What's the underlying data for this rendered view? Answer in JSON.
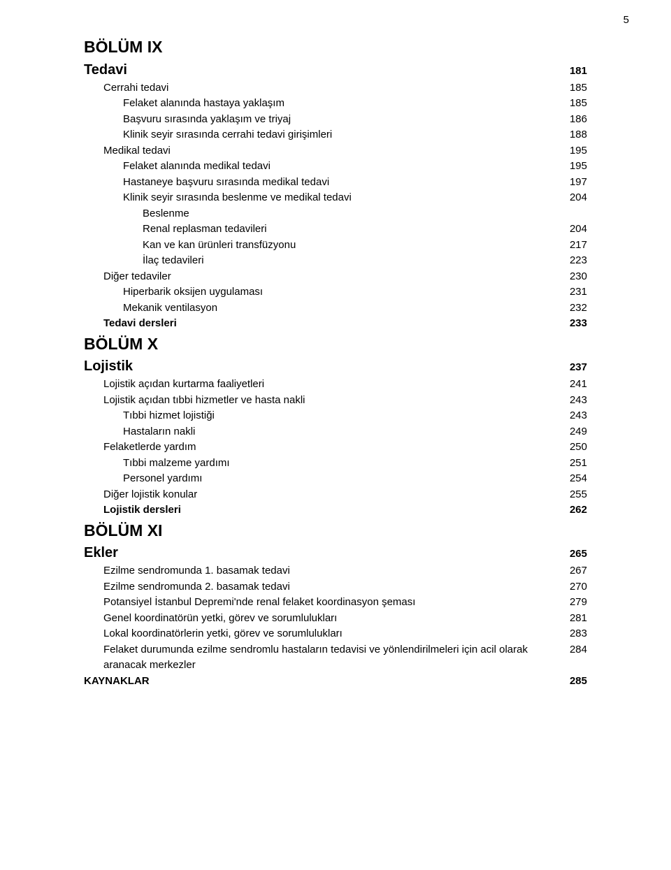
{
  "page_number": "5",
  "colors": {
    "text": "#000000",
    "background": "#ffffff"
  },
  "typography": {
    "font_family": "Arial, Helvetica, sans-serif",
    "body_fontsize": 15,
    "h1_fontsize": 23,
    "h2_fontsize": 20,
    "line_height": 1.5
  },
  "toc": [
    {
      "label": "BÖLÜM IX",
      "page": "",
      "level": 0,
      "label_class": "h1",
      "num_class": ""
    },
    {
      "label": "Tedavi",
      "page": "181",
      "level": 0,
      "label_class": "h2",
      "num_class": "bold"
    },
    {
      "label": "Cerrahi tedavi",
      "page": "185",
      "level": 1,
      "label_class": "body",
      "num_class": ""
    },
    {
      "label": "Felaket alanında hastaya yaklaşım",
      "page": "185",
      "level": 2,
      "label_class": "body",
      "num_class": ""
    },
    {
      "label": "Başvuru sırasında yaklaşım ve triyaj",
      "page": "186",
      "level": 2,
      "label_class": "body",
      "num_class": ""
    },
    {
      "label": "Klinik seyir sırasında cerrahi tedavi girişimleri",
      "page": "188",
      "level": 2,
      "label_class": "body",
      "num_class": ""
    },
    {
      "label": "Medikal tedavi",
      "page": "195",
      "level": 1,
      "label_class": "body",
      "num_class": ""
    },
    {
      "label": "Felaket alanında medikal tedavi",
      "page": "195",
      "level": 2,
      "label_class": "body",
      "num_class": ""
    },
    {
      "label": "Hastaneye başvuru sırasında medikal tedavi",
      "page": "197",
      "level": 2,
      "label_class": "body",
      "num_class": ""
    },
    {
      "label": "Klinik seyir sırasında beslenme ve medikal tedavi",
      "page": "204",
      "level": 2,
      "label_class": "body",
      "num_class": ""
    },
    {
      "label": "Beslenme",
      "page": "",
      "level": 3,
      "label_class": "body",
      "num_class": ""
    },
    {
      "label": "Renal replasman tedavileri",
      "page": "204",
      "level": 3,
      "label_class": "body",
      "num_class": ""
    },
    {
      "label": "Kan ve kan ürünleri transfüzyonu",
      "page": "217",
      "level": 3,
      "label_class": "body",
      "num_class": ""
    },
    {
      "label": "İlaç tedavileri",
      "page": "223",
      "level": 3,
      "label_class": "body",
      "num_class": ""
    },
    {
      "label": "Diğer tedaviler",
      "page": "230",
      "level": 1,
      "label_class": "body",
      "num_class": ""
    },
    {
      "label": "Hiperbarik oksijen uygulaması",
      "page": "231",
      "level": 2,
      "label_class": "body",
      "num_class": ""
    },
    {
      "label": "Mekanik ventilasyon",
      "page": "232",
      "level": 2,
      "label_class": "body",
      "num_class": ""
    },
    {
      "label": "Tedavi dersleri",
      "page": "233",
      "level": 1,
      "label_class": "body bold",
      "num_class": "bold"
    },
    {
      "label": "BÖLÜM X",
      "page": "",
      "level": 0,
      "label_class": "h1",
      "num_class": ""
    },
    {
      "label": "Lojistik",
      "page": "237",
      "level": 0,
      "label_class": "h2",
      "num_class": "bold"
    },
    {
      "label": "Lojistik açıdan kurtarma faaliyetleri",
      "page": "241",
      "level": 1,
      "label_class": "body",
      "num_class": ""
    },
    {
      "label": "Lojistik açıdan tıbbi hizmetler ve hasta nakli",
      "page": "243",
      "level": 1,
      "label_class": "body",
      "num_class": ""
    },
    {
      "label": "Tıbbi hizmet lojistiği",
      "page": "243",
      "level": 2,
      "label_class": "body",
      "num_class": ""
    },
    {
      "label": "Hastaların nakli",
      "page": "249",
      "level": 2,
      "label_class": "body",
      "num_class": ""
    },
    {
      "label": "Felaketlerde yardım",
      "page": "250",
      "level": 1,
      "label_class": "body",
      "num_class": ""
    },
    {
      "label": "Tıbbi malzeme yardımı",
      "page": "251",
      "level": 2,
      "label_class": "body",
      "num_class": ""
    },
    {
      "label": "Personel yardımı",
      "page": "254",
      "level": 2,
      "label_class": "body",
      "num_class": ""
    },
    {
      "label": "Diğer lojistik konular",
      "page": "255",
      "level": 1,
      "label_class": "body",
      "num_class": ""
    },
    {
      "label": "Lojistik dersleri",
      "page": "262",
      "level": 1,
      "label_class": "body bold",
      "num_class": "bold"
    },
    {
      "label": "BÖLÜM XI",
      "page": "",
      "level": 0,
      "label_class": "h1",
      "num_class": ""
    },
    {
      "label": "Ekler",
      "page": "265",
      "level": 0,
      "label_class": "h2",
      "num_class": "bold"
    },
    {
      "label": "Ezilme sendromunda 1. basamak tedavi",
      "page": "267",
      "level": 1,
      "label_class": "body",
      "num_class": ""
    },
    {
      "label": "Ezilme sendromunda 2. basamak tedavi",
      "page": "270",
      "level": 1,
      "label_class": "body",
      "num_class": ""
    },
    {
      "label": "Potansiyel İstanbul Depremi'nde renal felaket koordinasyon şeması",
      "page": "279",
      "level": 1,
      "label_class": "body",
      "num_class": ""
    },
    {
      "label": "Genel koordinatörün yetki, görev ve sorumlulukları",
      "page": "281",
      "level": 1,
      "label_class": "body",
      "num_class": ""
    },
    {
      "label": "Lokal koordinatörlerin yetki, görev ve sorumlulukları",
      "page": "283",
      "level": 1,
      "label_class": "body",
      "num_class": ""
    },
    {
      "label": "Felaket durumunda ezilme sendromlu hastaların tedavisi ve yönlendirilmeleri için acil olarak aranacak merkezler",
      "page": "284",
      "level": 1,
      "label_class": "body",
      "num_class": ""
    },
    {
      "label": "KAYNAKLAR",
      "page": "285",
      "level": 0,
      "label_class": "body bold",
      "num_class": "bold"
    }
  ]
}
